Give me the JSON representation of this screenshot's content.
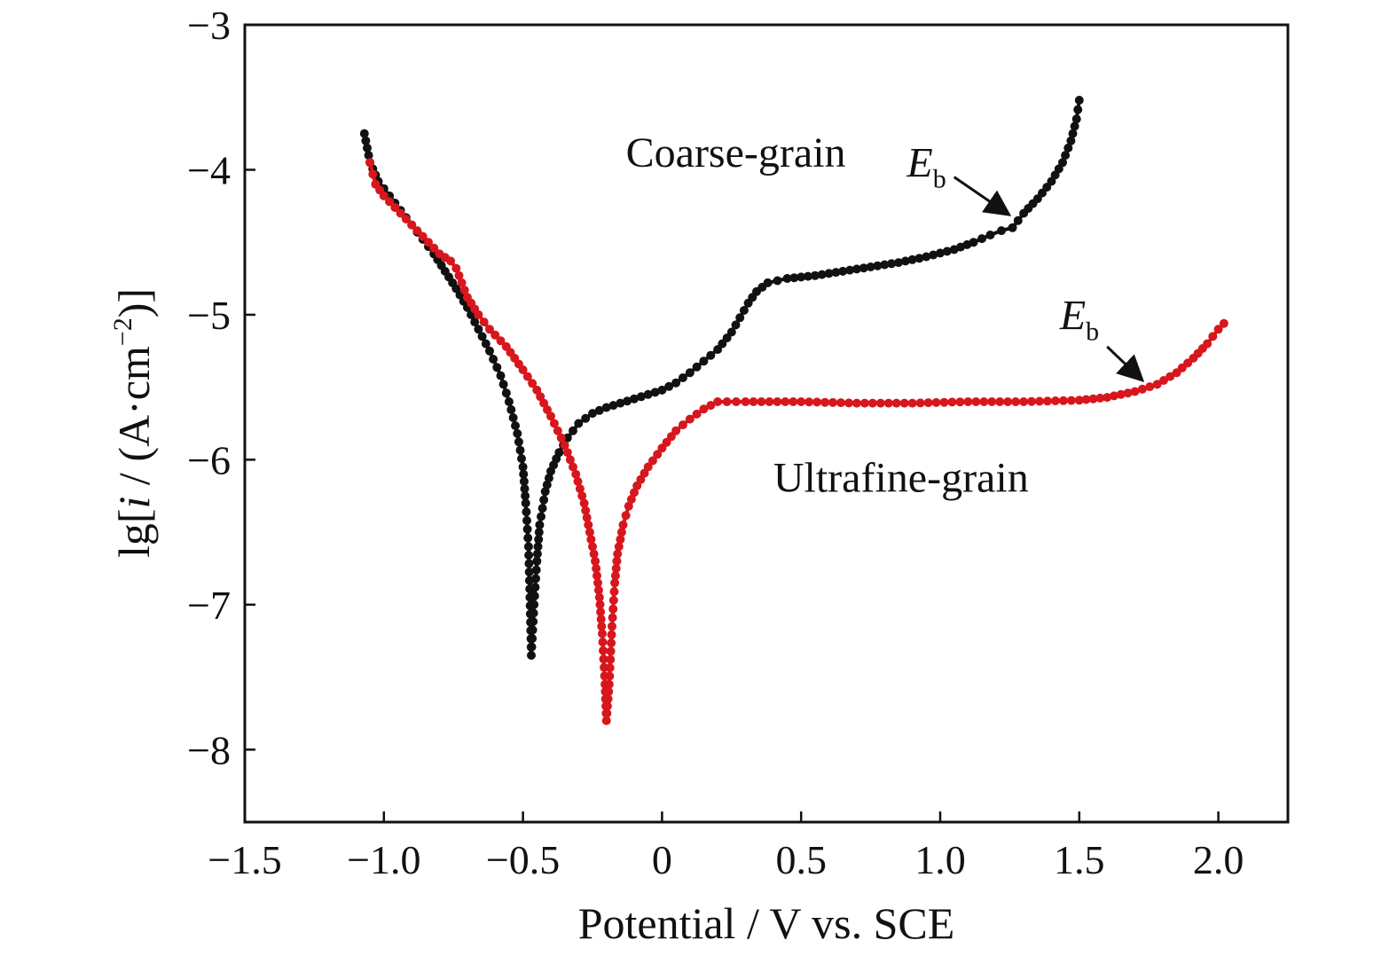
{
  "chart_data": {
    "type": "line",
    "title": "",
    "xlabel": "Potential / V vs. SCE",
    "ylabel_parts": {
      "pre": "lg[",
      "var": "i",
      "mid": " / (A·cm",
      "sup": "−2",
      "post": ")]"
    },
    "xlim": [
      -1.5,
      2.25
    ],
    "ylim": [
      -8.5,
      -3
    ],
    "xticks": [
      -1.5,
      -1.0,
      -0.5,
      0,
      0.5,
      1.0,
      1.5,
      2.0
    ],
    "xtick_labels": [
      "−1.5",
      "−1.0",
      "−0.5",
      "0",
      "0.5",
      "1.0",
      "1.5",
      "2.0"
    ],
    "yticks": [
      -3,
      -4,
      -5,
      -6,
      -7,
      -8
    ],
    "ytick_labels": [
      "−3",
      "−4",
      "−5",
      "−6",
      "−7",
      "−8"
    ],
    "grid": false,
    "series": [
      {
        "name": "Coarse-grain",
        "color": "#111111",
        "points": [
          [
            -1.07,
            -3.75
          ],
          [
            -1.06,
            -3.85
          ],
          [
            -1.05,
            -3.95
          ],
          [
            -1.02,
            -4.08
          ],
          [
            -0.98,
            -4.18
          ],
          [
            -0.94,
            -4.28
          ],
          [
            -0.9,
            -4.38
          ],
          [
            -0.86,
            -4.48
          ],
          [
            -0.82,
            -4.58
          ],
          [
            -0.78,
            -4.7
          ],
          [
            -0.74,
            -4.82
          ],
          [
            -0.7,
            -4.95
          ],
          [
            -0.66,
            -5.1
          ],
          [
            -0.62,
            -5.25
          ],
          [
            -0.58,
            -5.42
          ],
          [
            -0.55,
            -5.6
          ],
          [
            -0.52,
            -5.82
          ],
          [
            -0.5,
            -6.05
          ],
          [
            -0.49,
            -6.3
          ],
          [
            -0.48,
            -6.6
          ],
          [
            -0.475,
            -6.95
          ],
          [
            -0.47,
            -7.35
          ],
          [
            -0.46,
            -7.0
          ],
          [
            -0.45,
            -6.7
          ],
          [
            -0.44,
            -6.45
          ],
          [
            -0.42,
            -6.22
          ],
          [
            -0.4,
            -6.08
          ],
          [
            -0.37,
            -5.95
          ],
          [
            -0.34,
            -5.85
          ],
          [
            -0.3,
            -5.75
          ],
          [
            -0.25,
            -5.68
          ],
          [
            -0.2,
            -5.64
          ],
          [
            -0.15,
            -5.61
          ],
          [
            -0.1,
            -5.58
          ],
          [
            -0.05,
            -5.55
          ],
          [
            0.0,
            -5.52
          ],
          [
            0.05,
            -5.47
          ],
          [
            0.1,
            -5.4
          ],
          [
            0.15,
            -5.32
          ],
          [
            0.2,
            -5.24
          ],
          [
            0.25,
            -5.12
          ],
          [
            0.28,
            -5.02
          ],
          [
            0.31,
            -4.92
          ],
          [
            0.34,
            -4.84
          ],
          [
            0.38,
            -4.78
          ],
          [
            0.45,
            -4.75
          ],
          [
            0.55,
            -4.73
          ],
          [
            0.65,
            -4.7
          ],
          [
            0.75,
            -4.67
          ],
          [
            0.85,
            -4.64
          ],
          [
            0.95,
            -4.6
          ],
          [
            1.05,
            -4.55
          ],
          [
            1.12,
            -4.5
          ],
          [
            1.18,
            -4.45
          ],
          [
            1.22,
            -4.42
          ],
          [
            1.26,
            -4.4
          ],
          [
            1.3,
            -4.3
          ],
          [
            1.35,
            -4.2
          ],
          [
            1.4,
            -4.08
          ],
          [
            1.44,
            -3.95
          ],
          [
            1.47,
            -3.8
          ],
          [
            1.49,
            -3.65
          ],
          [
            1.5,
            -3.52
          ]
        ]
      },
      {
        "name": "Ultrafine-grain",
        "color": "#d7161d",
        "points": [
          [
            -1.05,
            -3.95
          ],
          [
            -1.04,
            -4.03
          ],
          [
            -1.03,
            -4.1
          ],
          [
            -1.0,
            -4.18
          ],
          [
            -0.96,
            -4.26
          ],
          [
            -0.92,
            -4.34
          ],
          [
            -0.88,
            -4.42
          ],
          [
            -0.84,
            -4.5
          ],
          [
            -0.8,
            -4.58
          ],
          [
            -0.76,
            -4.63
          ],
          [
            -0.74,
            -4.68
          ],
          [
            -0.72,
            -4.78
          ],
          [
            -0.7,
            -4.88
          ],
          [
            -0.66,
            -5.0
          ],
          [
            -0.62,
            -5.1
          ],
          [
            -0.56,
            -5.22
          ],
          [
            -0.5,
            -5.38
          ],
          [
            -0.45,
            -5.52
          ],
          [
            -0.4,
            -5.7
          ],
          [
            -0.35,
            -5.9
          ],
          [
            -0.31,
            -6.1
          ],
          [
            -0.28,
            -6.3
          ],
          [
            -0.26,
            -6.5
          ],
          [
            -0.24,
            -6.7
          ],
          [
            -0.225,
            -6.95
          ],
          [
            -0.215,
            -7.2
          ],
          [
            -0.205,
            -7.55
          ],
          [
            -0.2,
            -7.8
          ],
          [
            -0.19,
            -7.55
          ],
          [
            -0.18,
            -7.15
          ],
          [
            -0.17,
            -6.85
          ],
          [
            -0.16,
            -6.65
          ],
          [
            -0.14,
            -6.45
          ],
          [
            -0.12,
            -6.32
          ],
          [
            -0.09,
            -6.18
          ],
          [
            -0.05,
            -6.05
          ],
          [
            0.0,
            -5.92
          ],
          [
            0.05,
            -5.8
          ],
          [
            0.1,
            -5.72
          ],
          [
            0.15,
            -5.65
          ],
          [
            0.2,
            -5.6
          ],
          [
            0.3,
            -5.6
          ],
          [
            0.5,
            -5.6
          ],
          [
            0.7,
            -5.61
          ],
          [
            0.9,
            -5.61
          ],
          [
            1.1,
            -5.6
          ],
          [
            1.3,
            -5.6
          ],
          [
            1.5,
            -5.59
          ],
          [
            1.6,
            -5.57
          ],
          [
            1.7,
            -5.53
          ],
          [
            1.78,
            -5.48
          ],
          [
            1.85,
            -5.4
          ],
          [
            1.91,
            -5.3
          ],
          [
            1.96,
            -5.2
          ],
          [
            2.0,
            -5.1
          ],
          [
            2.02,
            -5.06
          ]
        ]
      }
    ],
    "annotations": [
      {
        "text": "Coarse-grain",
        "x": -0.13,
        "y": -3.98
      },
      {
        "text": "Ultrafine-grain",
        "x": 0.4,
        "y": -6.22
      }
    ],
    "eb_markers": [
      {
        "main": "E",
        "sub": "b",
        "text_x": 0.88,
        "text_y": -4.05,
        "arrow_from": [
          1.05,
          -4.05
        ],
        "arrow_to": [
          1.24,
          -4.3
        ]
      },
      {
        "main": "E",
        "sub": "b",
        "text_x": 1.43,
        "text_y": -5.1,
        "arrow_from": [
          1.6,
          -5.22
        ],
        "arrow_to": [
          1.72,
          -5.44
        ]
      }
    ]
  }
}
